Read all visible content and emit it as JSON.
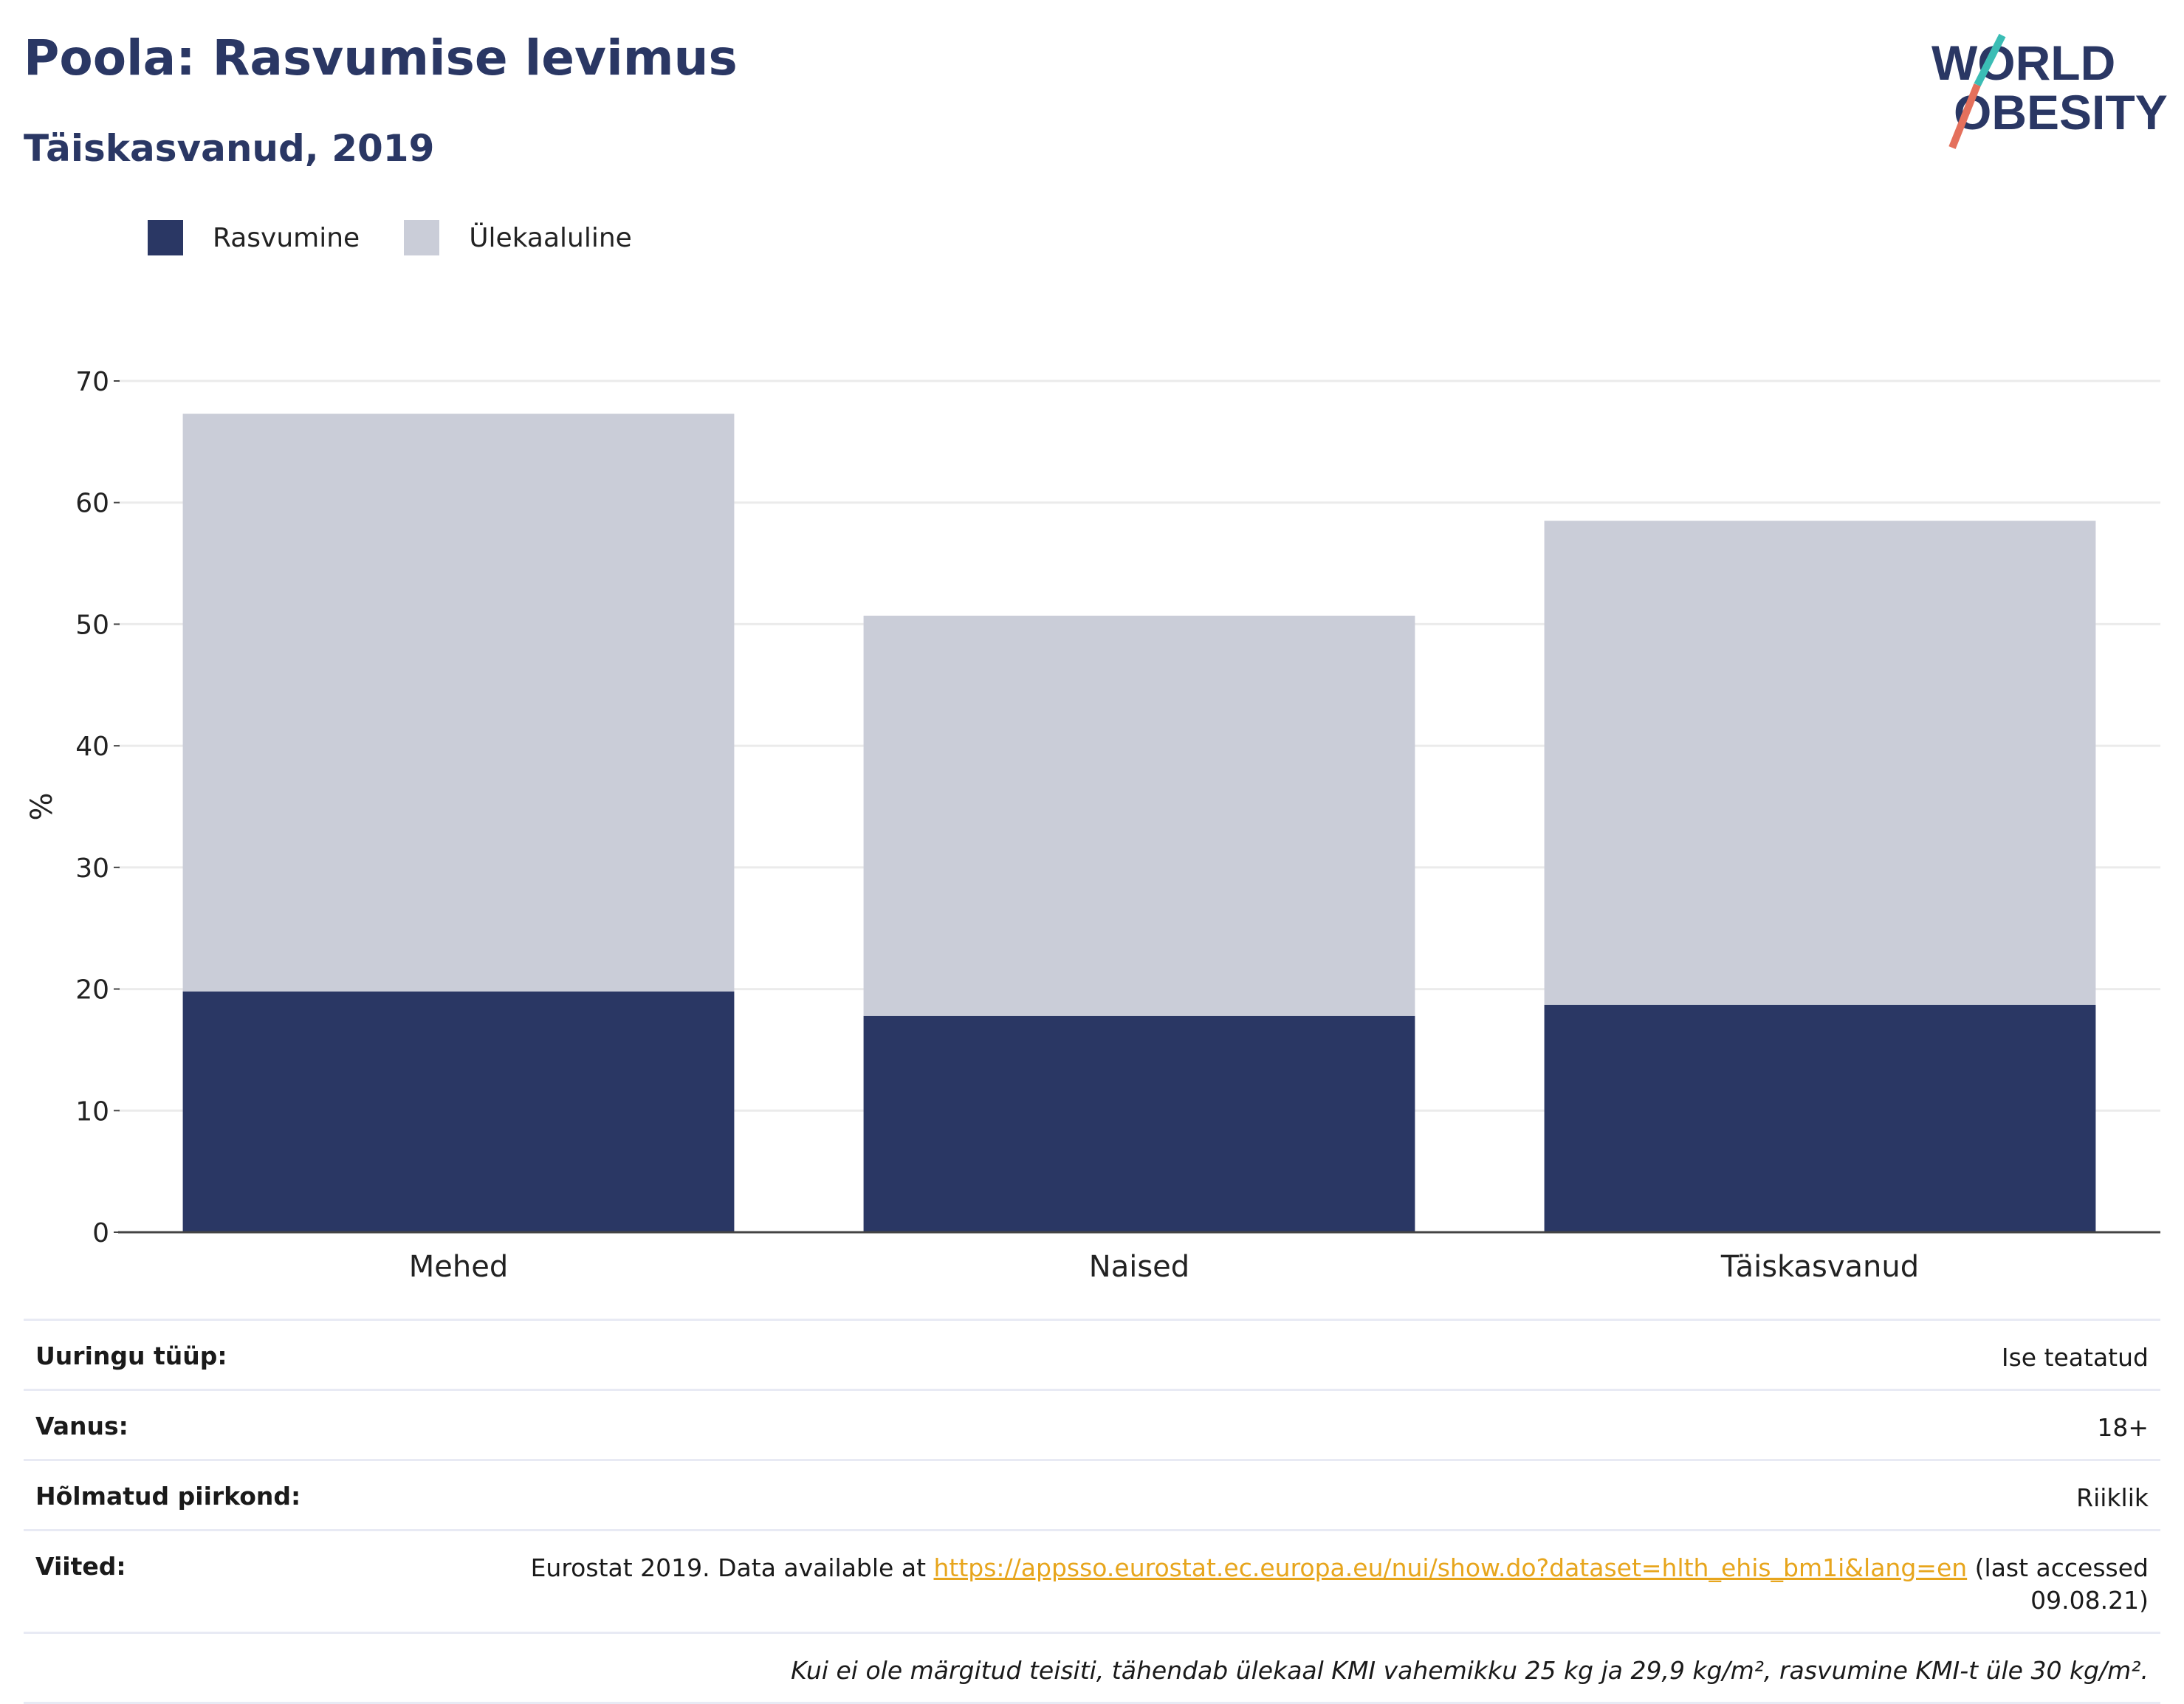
{
  "title": "Poola: Rasvumise levimus",
  "subtitle": "Täiskasvanud, 2019",
  "logo": {
    "line1": "WORLD",
    "line2": "OBESITY"
  },
  "colors": {
    "obesity": "#2a3764",
    "overweight": "#cacdd8",
    "title": "#2a3764",
    "link": "#e7a51c"
  },
  "legend": [
    {
      "label": "Rasvumine",
      "color": "#2a3764"
    },
    {
      "label": "Ülekaaluline",
      "color": "#cacdd8"
    }
  ],
  "chart_data": {
    "type": "bar",
    "stacked": true,
    "categories": [
      "Mehed",
      "Naised",
      "Täiskasvanud"
    ],
    "series": [
      {
        "name": "Rasvumine",
        "values": [
          19.8,
          17.8,
          18.7
        ]
      },
      {
        "name": "Ülekaaluline",
        "values": [
          47.5,
          32.9,
          39.8
        ]
      }
    ],
    "ylabel": "%",
    "ylim": [
      0,
      70
    ],
    "yticks": [
      0,
      10,
      20,
      30,
      40,
      50,
      60,
      70
    ],
    "grid": true,
    "legend_position": "top-left"
  },
  "info": {
    "survey_label": "Uuringu tüüp:",
    "survey_value": "Ise teatatud",
    "age_label": "Vanus:",
    "age_value": "18+",
    "region_label": "Hõlmatud piirkond:",
    "region_value": "Riiklik",
    "refs_label": "Viited:",
    "refs_prefix": "Eurostat 2019. Data available at ",
    "refs_link": "https://appsso.eurostat.ec.europa.eu/nui/show.do?dataset=hlth_ehis_bm1i&lang=en",
    "refs_suffix": " (last accessed 09.08.21)",
    "note": "Kui ei ole märgitud teisiti, tähendab ülekaal KMI vahemikku 25 kg ja 29,9 kg/m², rasvumine KMI-t üle 30 kg/m²."
  }
}
